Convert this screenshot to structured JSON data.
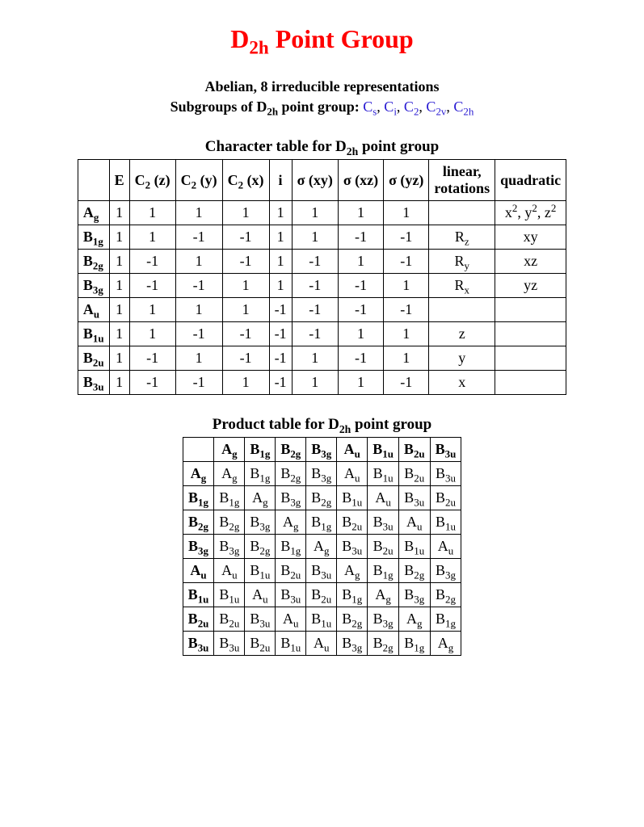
{
  "title_html": "D<sub>2h</sub> Point Group",
  "subtitle": "Abelian, 8 irreducible representations",
  "subgroups_label_html": "Subgroups of D<sub>2h</sub> point group: ",
  "subgroups": [
    {
      "html": "C<sub>s</sub>"
    },
    {
      "html": "C<sub>i</sub>"
    },
    {
      "html": "C<sub>2</sub>"
    },
    {
      "html": "C<sub>2v</sub>"
    },
    {
      "html": "C<sub>2h</sub>"
    }
  ],
  "link_color": "#281ad2",
  "title_color": "#ff0000",
  "border_color": "#000000",
  "background_color": "#ffffff",
  "font_family": "Times New Roman",
  "char_table": {
    "caption_html": "Character table for D<sub>2h</sub> point group",
    "columns_html": [
      "",
      "E",
      "C<sub>2</sub> (z)",
      "C<sub>2</sub> (y)",
      "C<sub>2</sub> (x)",
      "i",
      "σ (xy)",
      "σ (xz)",
      "σ (yz)",
      "linear,<br>rotations",
      "quadratic"
    ],
    "rows": [
      {
        "label_html": "A<sub>g</sub>",
        "cells": [
          "1",
          "1",
          "1",
          "1",
          "1",
          "1",
          "1",
          "1"
        ],
        "linear_html": "",
        "quad_html": "x<sup>2</sup>, y<sup>2</sup>, z<sup>2</sup>"
      },
      {
        "label_html": "B<sub>1g</sub>",
        "cells": [
          "1",
          "1",
          "-1",
          "-1",
          "1",
          "1",
          "-1",
          "-1"
        ],
        "linear_html": "R<sub>z</sub>",
        "quad_html": "xy"
      },
      {
        "label_html": "B<sub>2g</sub>",
        "cells": [
          "1",
          "-1",
          "1",
          "-1",
          "1",
          "-1",
          "1",
          "-1"
        ],
        "linear_html": "R<sub>y</sub>",
        "quad_html": "xz"
      },
      {
        "label_html": "B<sub>3g</sub>",
        "cells": [
          "1",
          "-1",
          "-1",
          "1",
          "1",
          "-1",
          "-1",
          "1"
        ],
        "linear_html": "R<sub>x</sub>",
        "quad_html": "yz"
      },
      {
        "label_html": "A<sub>u</sub>",
        "cells": [
          "1",
          "1",
          "1",
          "1",
          "-1",
          "-1",
          "-1",
          "-1"
        ],
        "linear_html": "",
        "quad_html": ""
      },
      {
        "label_html": "B<sub>1u</sub>",
        "cells": [
          "1",
          "1",
          "-1",
          "-1",
          "-1",
          "-1",
          "1",
          "1"
        ],
        "linear_html": "z",
        "quad_html": ""
      },
      {
        "label_html": "B<sub>2u</sub>",
        "cells": [
          "1",
          "-1",
          "1",
          "-1",
          "-1",
          "1",
          "-1",
          "1"
        ],
        "linear_html": "y",
        "quad_html": ""
      },
      {
        "label_html": "B<sub>3u</sub>",
        "cells": [
          "1",
          "-1",
          "-1",
          "1",
          "-1",
          "1",
          "1",
          "-1"
        ],
        "linear_html": "x",
        "quad_html": ""
      }
    ]
  },
  "prod_table": {
    "caption_html": "Product table for D<sub>2h</sub> point group",
    "headers_html": [
      "",
      "A<sub>g</sub>",
      "B<sub>1g</sub>",
      "B<sub>2g</sub>",
      "B<sub>3g</sub>",
      "A<sub>u</sub>",
      "B<sub>1u</sub>",
      "B<sub>2u</sub>",
      "B<sub>3u</sub>"
    ],
    "rows": [
      {
        "label_html": "A<sub>g</sub>",
        "cells_html": [
          "A<sub>g</sub>",
          "B<sub>1g</sub>",
          "B<sub>2g</sub>",
          "B<sub>3g</sub>",
          "A<sub>u</sub>",
          "B<sub>1u</sub>",
          "B<sub>2u</sub>",
          "B<sub>3u</sub>"
        ]
      },
      {
        "label_html": "B<sub>1g</sub>",
        "cells_html": [
          "B<sub>1g</sub>",
          "A<sub>g</sub>",
          "B<sub>3g</sub>",
          "B<sub>2g</sub>",
          "B<sub>1u</sub>",
          "A<sub>u</sub>",
          "B<sub>3u</sub>",
          "B<sub>2u</sub>"
        ]
      },
      {
        "label_html": "B<sub>2g</sub>",
        "cells_html": [
          "B<sub>2g</sub>",
          "B<sub>3g</sub>",
          "A<sub>g</sub>",
          "B<sub>1g</sub>",
          "B<sub>2u</sub>",
          "B<sub>3u</sub>",
          "A<sub>u</sub>",
          "B<sub>1u</sub>"
        ]
      },
      {
        "label_html": "B<sub>3g</sub>",
        "cells_html": [
          "B<sub>3g</sub>",
          "B<sub>2g</sub>",
          "B<sub>1g</sub>",
          "A<sub>g</sub>",
          "B<sub>3u</sub>",
          "B<sub>2u</sub>",
          "B<sub>1u</sub>",
          "A<sub>u</sub>"
        ]
      },
      {
        "label_html": "A<sub>u</sub>",
        "cells_html": [
          "A<sub>u</sub>",
          "B<sub>1u</sub>",
          "B<sub>2u</sub>",
          "B<sub>3u</sub>",
          "A<sub>g</sub>",
          "B<sub>1g</sub>",
          "B<sub>2g</sub>",
          "B<sub>3g</sub>"
        ]
      },
      {
        "label_html": "B<sub>1u</sub>",
        "cells_html": [
          "B<sub>1u</sub>",
          "A<sub>u</sub>",
          "B<sub>3u</sub>",
          "B<sub>2u</sub>",
          "B<sub>1g</sub>",
          "A<sub>g</sub>",
          "B<sub>3g</sub>",
          "B<sub>2g</sub>"
        ]
      },
      {
        "label_html": "B<sub>2u</sub>",
        "cells_html": [
          "B<sub>2u</sub>",
          "B<sub>3u</sub>",
          "A<sub>u</sub>",
          "B<sub>1u</sub>",
          "B<sub>2g</sub>",
          "B<sub>3g</sub>",
          "A<sub>g</sub>",
          "B<sub>1g</sub>"
        ]
      },
      {
        "label_html": "B<sub>3u</sub>",
        "cells_html": [
          "B<sub>3u</sub>",
          "B<sub>2u</sub>",
          "B<sub>1u</sub>",
          "A<sub>u</sub>",
          "B<sub>3g</sub>",
          "B<sub>2g</sub>",
          "B<sub>1g</sub>",
          "A<sub>g</sub>"
        ]
      }
    ]
  }
}
